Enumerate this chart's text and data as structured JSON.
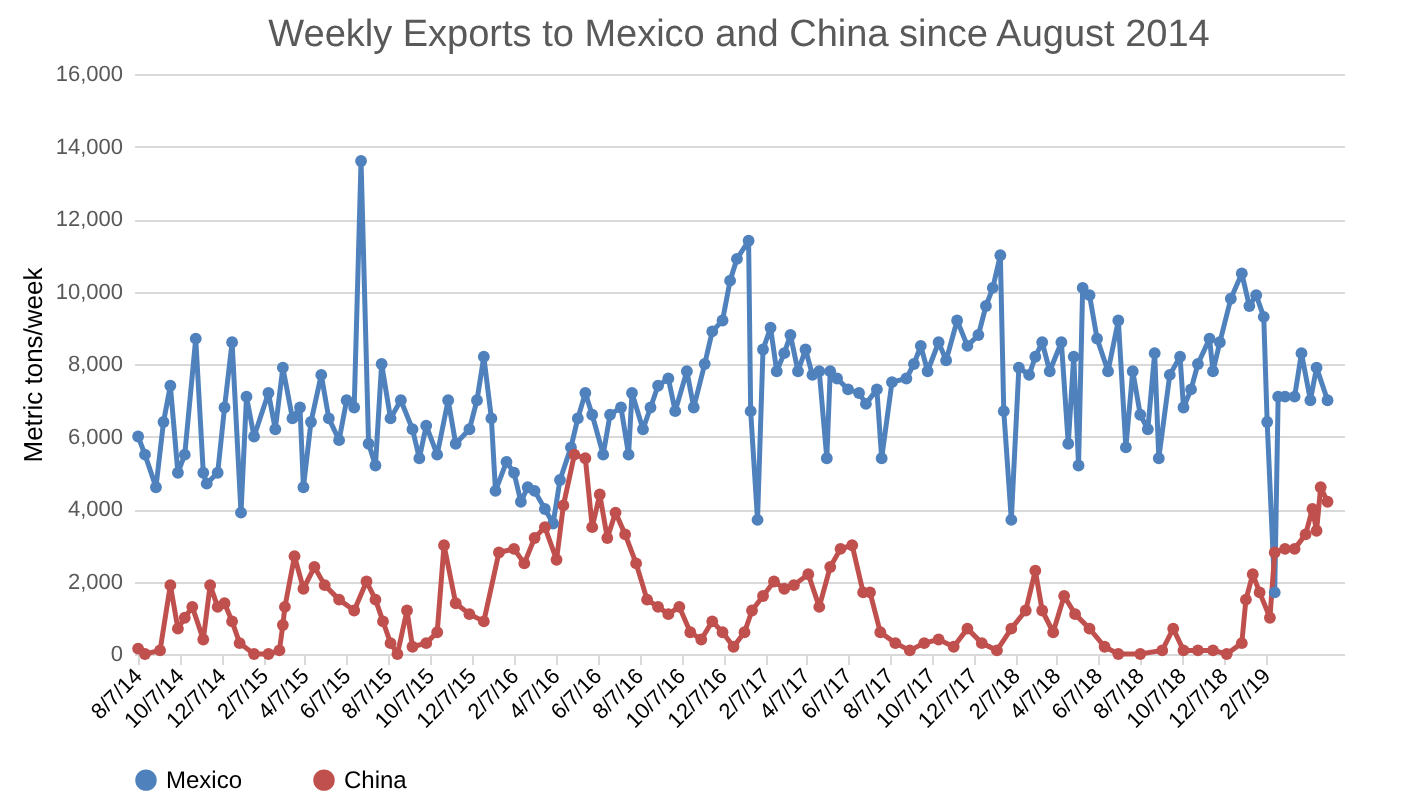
{
  "chart_data": {
    "type": "line",
    "title": "Weekly Exports to Mexico and China since August 2014",
    "ylabel": "Metric tons/week",
    "ylim": [
      0,
      16000
    ],
    "yticks": [
      0,
      {
        "value": 2000,
        "label": "2,000"
      },
      {
        "value": 4000,
        "label": "4,000"
      },
      {
        "value": 6000,
        "label": "6,000"
      },
      {
        "value": 8000,
        "label": "8,000"
      },
      {
        "value": 10000,
        "label": "10,000"
      },
      {
        "value": 12000,
        "label": "12,000"
      },
      {
        "value": 14000,
        "label": "14,000"
      },
      {
        "value": 16000,
        "label": "16,000"
      }
    ],
    "xlim": [
      "2014-08-01",
      "2019-05-31"
    ],
    "xticks": [
      {
        "value": "2014-08-07",
        "label": "8/7/14"
      },
      {
        "value": "2014-10-07",
        "label": "10/7/14"
      },
      {
        "value": "2014-12-07",
        "label": "12/7/14"
      },
      {
        "value": "2015-02-07",
        "label": "2/7/15"
      },
      {
        "value": "2015-04-07",
        "label": "4/7/15"
      },
      {
        "value": "2015-06-07",
        "label": "6/7/15"
      },
      {
        "value": "2015-08-07",
        "label": "8/7/15"
      },
      {
        "value": "2015-10-07",
        "label": "10/7/15"
      },
      {
        "value": "2015-12-07",
        "label": "12/7/15"
      },
      {
        "value": "2016-02-07",
        "label": "2/7/16"
      },
      {
        "value": "2016-04-07",
        "label": "4/7/16"
      },
      {
        "value": "2016-06-07",
        "label": "6/7/16"
      },
      {
        "value": "2016-08-07",
        "label": "8/7/16"
      },
      {
        "value": "2016-10-07",
        "label": "10/7/16"
      },
      {
        "value": "2016-12-07",
        "label": "12/7/16"
      },
      {
        "value": "2017-02-07",
        "label": "2/7/17"
      },
      {
        "value": "2017-04-07",
        "label": "4/7/17"
      },
      {
        "value": "2017-06-07",
        "label": "6/7/17"
      },
      {
        "value": "2017-08-07",
        "label": "8/7/17"
      },
      {
        "value": "2017-10-07",
        "label": "10/7/17"
      },
      {
        "value": "2017-12-07",
        "label": "12/7/17"
      },
      {
        "value": "2018-02-07",
        "label": "2/7/18"
      },
      {
        "value": "2018-04-07",
        "label": "4/7/18"
      },
      {
        "value": "2018-06-07",
        "label": "6/7/18"
      },
      {
        "value": "2018-08-07",
        "label": "8/7/18"
      },
      {
        "value": "2018-10-07",
        "label": "10/7/18"
      },
      {
        "value": "2018-12-07",
        "label": "12/7/18"
      },
      {
        "value": "2019-02-07",
        "label": "2/7/19"
      }
    ],
    "grid": "y",
    "legend": "bottom",
    "marker": "circle",
    "line_style": "solid",
    "series": [
      {
        "name": "Mexico",
        "color": "#4f81bd",
        "x": [
          "2014-08-07",
          "2014-08-17",
          "2014-09-02",
          "2014-09-13",
          "2014-09-23",
          "2014-10-04",
          "2014-10-14",
          "2014-10-30",
          "2014-11-10",
          "2014-11-15",
          "2014-12-01",
          "2014-12-11",
          "2014-12-22",
          "2015-01-04",
          "2015-01-12",
          "2015-01-23",
          "2015-02-13",
          "2015-02-23",
          "2015-03-06",
          "2015-03-20",
          "2015-03-31",
          "2015-04-05",
          "2015-04-16",
          "2015-05-01",
          "2015-05-12",
          "2015-05-27",
          "2015-06-07",
          "2015-06-18",
          "2015-06-28",
          "2015-07-09",
          "2015-07-19",
          "2015-07-28",
          "2015-08-10",
          "2015-08-25",
          "2015-09-11",
          "2015-09-21",
          "2015-10-01",
          "2015-10-17",
          "2015-11-02",
          "2015-11-13",
          "2015-12-03",
          "2015-12-14",
          "2015-12-24",
          "2016-01-04",
          "2016-01-10",
          "2016-01-26",
          "2016-02-06",
          "2016-02-16",
          "2016-02-26",
          "2016-03-07",
          "2016-03-22",
          "2016-04-03",
          "2016-04-13",
          "2016-04-29",
          "2016-05-09",
          "2016-05-20",
          "2016-05-30",
          "2016-06-15",
          "2016-06-25",
          "2016-07-11",
          "2016-07-22",
          "2016-07-27",
          "2016-08-12",
          "2016-08-23",
          "2016-09-03",
          "2016-09-18",
          "2016-09-28",
          "2016-10-15",
          "2016-10-25",
          "2016-11-10",
          "2016-11-21",
          "2016-12-06",
          "2016-12-17",
          "2016-12-27",
          "2017-01-13",
          "2017-01-16",
          "2017-01-26",
          "2017-02-03",
          "2017-02-14",
          "2017-02-23",
          "2017-03-06",
          "2017-03-15",
          "2017-03-26",
          "2017-04-06",
          "2017-04-16",
          "2017-04-26",
          "2017-05-07",
          "2017-05-12",
          "2017-05-22",
          "2017-06-07",
          "2017-06-23",
          "2017-07-03",
          "2017-07-19",
          "2017-07-26",
          "2017-08-10",
          "2017-08-31",
          "2017-09-11",
          "2017-09-21",
          "2017-10-01",
          "2017-10-17",
          "2017-10-28",
          "2017-11-13",
          "2017-11-28",
          "2017-12-14",
          "2017-12-25",
          "2018-01-04",
          "2018-01-15",
          "2018-01-20",
          "2018-01-31",
          "2018-02-11",
          "2018-02-26",
          "2018-03-07",
          "2018-03-17",
          "2018-03-28",
          "2018-04-14",
          "2018-04-24",
          "2018-05-02",
          "2018-05-09",
          "2018-05-15",
          "2018-05-25",
          "2018-06-05",
          "2018-06-21",
          "2018-07-06",
          "2018-07-17",
          "2018-07-27",
          "2018-08-07",
          "2018-08-18",
          "2018-08-28",
          "2018-09-03",
          "2018-09-19",
          "2018-10-04",
          "2018-10-09",
          "2018-10-20",
          "2018-10-30",
          "2018-11-16",
          "2018-11-21",
          "2018-12-01",
          "2018-12-17",
          "2019-01-02",
          "2019-01-13",
          "2019-01-23",
          "2019-02-03",
          "2019-02-08",
          "2019-02-19",
          "2019-02-24",
          "2019-03-06",
          "2019-03-20",
          "2019-03-30",
          "2019-04-12",
          "2019-04-21",
          "2019-05-07"
        ],
        "values": [
          6000,
          5500,
          4600,
          6400,
          7400,
          5000,
          5500,
          8700,
          5000,
          4700,
          5000,
          6800,
          8600,
          3900,
          7100,
          6000,
          7200,
          6200,
          7900,
          6500,
          6800,
          4600,
          6400,
          7700,
          6500,
          5900,
          7000,
          6800,
          13600,
          5800,
          5200,
          8000,
          6500,
          7000,
          6200,
          5400,
          6300,
          5500,
          7000,
          5800,
          6200,
          7000,
          8200,
          6500,
          4500,
          5300,
          5000,
          4200,
          4600,
          4500,
          4000,
          3600,
          4800,
          5700,
          6500,
          7200,
          6600,
          5500,
          6600,
          6800,
          5500,
          7200,
          6200,
          6800,
          7400,
          7600,
          6700,
          7800,
          6800,
          8000,
          8900,
          9200,
          10300,
          10900,
          11400,
          6700,
          3700,
          8400,
          9000,
          7800,
          8300,
          8800,
          7800,
          8400,
          7700,
          7800,
          5400,
          7800,
          7600,
          7300,
          7200,
          6900,
          7300,
          5400,
          7500,
          7600,
          8000,
          8500,
          7800,
          8600,
          8100,
          9200,
          8500,
          8800,
          9600,
          10100,
          11000,
          6700,
          3700,
          7900,
          7700,
          8200,
          8600,
          7800,
          8600,
          5800,
          8200,
          5200,
          10100,
          9900,
          8700,
          7800,
          9200,
          5700,
          7800,
          6600,
          6200,
          8300,
          5400,
          7700,
          8200,
          6800,
          7300,
          8000,
          8700,
          7800,
          8600,
          9800,
          10500,
          9600,
          9900,
          9300,
          6400,
          1700,
          7100,
          7100,
          7100,
          8300,
          7000,
          7900,
          7000
        ]
      },
      {
        "name": "China",
        "color": "#c0504d",
        "x": [
          "2014-08-07",
          "2014-08-17",
          "2014-09-08",
          "2014-09-23",
          "2014-10-04",
          "2014-10-14",
          "2014-10-25",
          "2014-11-10",
          "2014-11-20",
          "2014-12-01",
          "2014-12-11",
          "2014-12-22",
          "2015-01-02",
          "2015-01-23",
          "2015-02-13",
          "2015-03-01",
          "2015-03-06",
          "2015-03-09",
          "2015-03-23",
          "2015-04-05",
          "2015-04-21",
          "2015-05-06",
          "2015-05-27",
          "2015-06-18",
          "2015-07-06",
          "2015-07-19",
          "2015-07-30",
          "2015-08-10",
          "2015-08-20",
          "2015-09-03",
          "2015-09-11",
          "2015-10-01",
          "2015-10-17",
          "2015-10-27",
          "2015-11-13",
          "2015-12-03",
          "2015-12-24",
          "2016-01-15",
          "2016-02-06",
          "2016-02-21",
          "2016-03-07",
          "2016-03-22",
          "2016-04-08",
          "2016-04-18",
          "2016-05-04",
          "2016-05-20",
          "2016-05-30",
          "2016-06-10",
          "2016-06-21",
          "2016-07-03",
          "2016-07-17",
          "2016-08-02",
          "2016-08-18",
          "2016-09-03",
          "2016-09-18",
          "2016-10-04",
          "2016-10-20",
          "2016-11-05",
          "2016-11-21",
          "2016-12-06",
          "2016-12-22",
          "2017-01-07",
          "2017-01-18",
          "2017-02-03",
          "2017-02-19",
          "2017-03-06",
          "2017-03-20",
          "2017-04-10",
          "2017-04-26",
          "2017-05-12",
          "2017-05-27",
          "2017-06-13",
          "2017-06-29",
          "2017-07-09",
          "2017-07-24",
          "2017-08-15",
          "2017-09-05",
          "2017-09-26",
          "2017-10-17",
          "2017-11-08",
          "2017-11-28",
          "2017-12-19",
          "2018-01-10",
          "2018-01-31",
          "2018-02-21",
          "2018-03-07",
          "2018-03-17",
          "2018-04-02",
          "2018-04-18",
          "2018-05-04",
          "2018-05-25",
          "2018-06-16",
          "2018-07-06",
          "2018-08-07",
          "2018-09-08",
          "2018-09-24",
          "2018-10-09",
          "2018-10-30",
          "2018-11-21",
          "2018-12-11",
          "2019-01-02",
          "2019-01-08",
          "2019-01-18",
          "2019-01-28",
          "2019-02-12",
          "2019-02-19",
          "2019-03-06",
          "2019-03-20",
          "2019-04-05",
          "2019-04-15",
          "2019-04-21",
          "2019-04-27",
          "2019-05-07"
        ],
        "values": [
          150,
          0,
          100,
          1900,
          700,
          1000,
          1300,
          400,
          1900,
          1300,
          1400,
          900,
          300,
          0,
          0,
          100,
          800,
          1300,
          2700,
          1800,
          2400,
          1900,
          1500,
          1200,
          2000,
          1500,
          900,
          300,
          0,
          1200,
          200,
          300,
          600,
          3000,
          1400,
          1100,
          900,
          2800,
          2900,
          2500,
          3200,
          3500,
          2600,
          4100,
          5500,
          5400,
          3500,
          4400,
          3200,
          3900,
          3300,
          2500,
          1500,
          1300,
          1100,
          1300,
          600,
          400,
          900,
          600,
          200,
          600,
          1200,
          1600,
          2000,
          1800,
          1900,
          2200,
          1300,
          2400,
          2900,
          3000,
          1700,
          1700,
          600,
          300,
          100,
          300,
          400,
          200,
          700,
          300,
          100,
          700,
          1200,
          2300,
          1200,
          600,
          1600,
          1100,
          700,
          200,
          0,
          0,
          100,
          700,
          100,
          100,
          100,
          0,
          300,
          1500,
          2200,
          1700,
          1000,
          2800,
          2900,
          2900,
          3300,
          4000,
          3400,
          4600,
          4200
        ]
      }
    ]
  }
}
